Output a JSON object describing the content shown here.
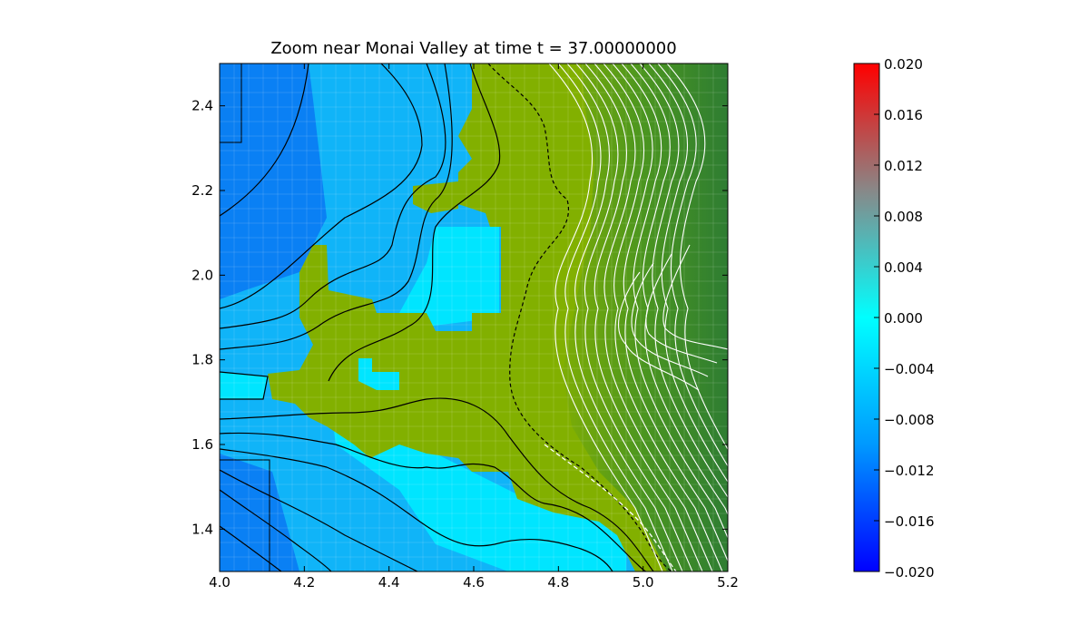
{
  "chart_data": {
    "type": "heatmap",
    "title": "Zoom near Monai Valley at time t =    37.00000000",
    "xlim": [
      4.0,
      5.2
    ],
    "ylim": [
      1.3,
      2.5
    ],
    "x_ticks": [
      "4.0",
      "4.2",
      "4.4",
      "4.6",
      "4.8",
      "5.0",
      "5.2"
    ],
    "y_ticks": [
      "1.4",
      "1.6",
      "1.8",
      "2.0",
      "2.2",
      "2.4"
    ],
    "colorbar": {
      "range": [
        -0.02,
        0.02
      ],
      "ticks": [
        "0.020",
        "0.016",
        "0.012",
        "0.008",
        "0.004",
        "0.000",
        "−0.004",
        "−0.008",
        "−0.012",
        "−0.016",
        "−0.020"
      ],
      "colors": [
        "#0000ff",
        "#0099ff",
        "#00ffff",
        "#888888",
        "#ff0000"
      ]
    },
    "land_colors": {
      "light": "#82b000",
      "dark": "#2e7d32"
    },
    "water_shades": {
      "shallow": "#00e5ff",
      "mid": "#10b4f8",
      "deep": "#0a80f4"
    },
    "grid": true,
    "contours": "black lines over water and coastal region, dashed line at coastline, white lines over land"
  }
}
